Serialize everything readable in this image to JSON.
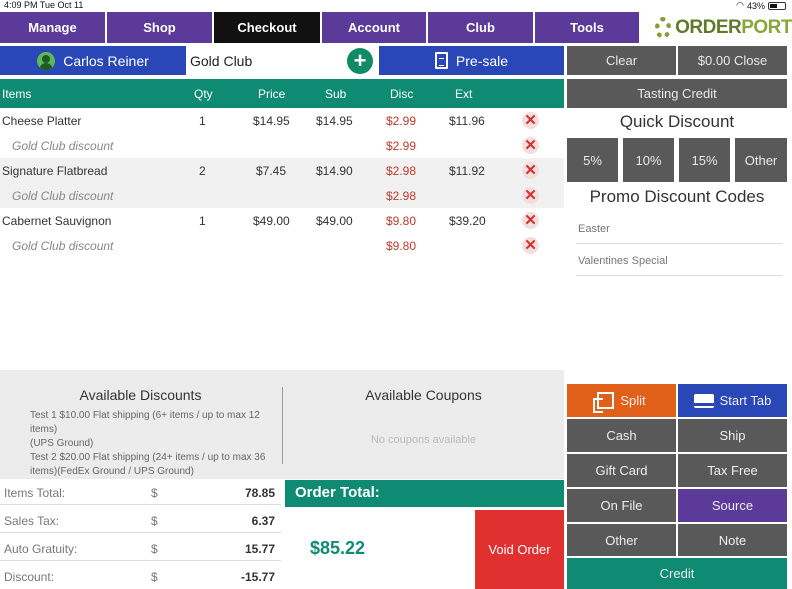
{
  "status_bar": {
    "time": "4:09 PM  Tue Oct 11",
    "battery": "43%"
  },
  "nav": {
    "tabs": [
      {
        "label": "Manage"
      },
      {
        "label": "Shop"
      },
      {
        "label": "Checkout"
      },
      {
        "label": "Account"
      },
      {
        "label": "Club"
      },
      {
        "label": "Tools"
      }
    ],
    "logo_text_a": "ORDER",
    "logo_text_b": "PORT"
  },
  "customer": {
    "name": "Carlos Reiner",
    "club": "Gold Club",
    "presale_label": "Pre-sale"
  },
  "table": {
    "headers": {
      "items": "Items",
      "qty": "Qty",
      "price": "Price",
      "sub": "Sub",
      "disc": "Disc",
      "ext": "Ext"
    },
    "rows": [
      {
        "name": "Cheese Platter",
        "qty": "1",
        "price": "$14.95",
        "sub": "$14.95",
        "disc": "$2.99",
        "ext": "$11.96",
        "discount_label": "Gold Club discount",
        "discount_amount": "$2.99"
      },
      {
        "name": "Signature Flatbread",
        "qty": "2",
        "price": "$7.45",
        "sub": "$14.90",
        "disc": "$2.98",
        "ext": "$11.92",
        "discount_label": "Gold Club discount",
        "discount_amount": "$2.98"
      },
      {
        "name": "Cabernet Sauvignon",
        "qty": "1",
        "price": "$49.00",
        "sub": "$49.00",
        "disc": "$9.80",
        "ext": "$39.20",
        "discount_label": "Gold Club discount",
        "discount_amount": "$9.80"
      }
    ]
  },
  "right_panel": {
    "clear_label": "Clear",
    "close_label": "$0.00 Close",
    "tasting_credit_label": "Tasting Credit",
    "quick_discount_title": "Quick Discount",
    "quick_discounts": [
      "5%",
      "10%",
      "15%",
      "Other"
    ],
    "promo_title": "Promo Discount Codes",
    "promo_codes": [
      "Easter",
      "Valentines Special"
    ]
  },
  "available": {
    "discounts_title": "Available Discounts",
    "discount_lines": [
      "Test 1 $10.00 Flat shipping (6+ items / up to max 12 items)",
      "(UPS Ground)",
      "Test 2 $20.00 Flat shipping (24+ items / up to max 36",
      "items)(FedEx Ground / UPS Ground)"
    ],
    "coupons_title": "Available Coupons",
    "no_coupons": "No coupons available"
  },
  "totals": [
    {
      "label": "Items Total:",
      "currency": "$",
      "value": "78.85"
    },
    {
      "label": "Sales Tax:",
      "currency": "$",
      "value": "6.37"
    },
    {
      "label": "Auto Gratuity:",
      "currency": "$",
      "value": "15.77"
    },
    {
      "label": "Discount:",
      "currency": "$",
      "value": "-15.77"
    }
  ],
  "order_total": {
    "label": "Order Total:",
    "value": "$85.22",
    "void_label": "Void Order"
  },
  "payment": {
    "split": "Split",
    "start_tab": "Start Tab",
    "cash": "Cash",
    "ship": "Ship",
    "gift_card": "Gift Card",
    "tax_free": "Tax Free",
    "on_file": "On File",
    "source": "Source",
    "other": "Other",
    "note": "Note",
    "credit": "Credit"
  },
  "colors": {
    "purple": "#5b3a9a",
    "teal": "#0e8b72",
    "blue": "#2a47b8",
    "grey": "#595959",
    "orange": "#e0601a",
    "red": "#e03030"
  }
}
